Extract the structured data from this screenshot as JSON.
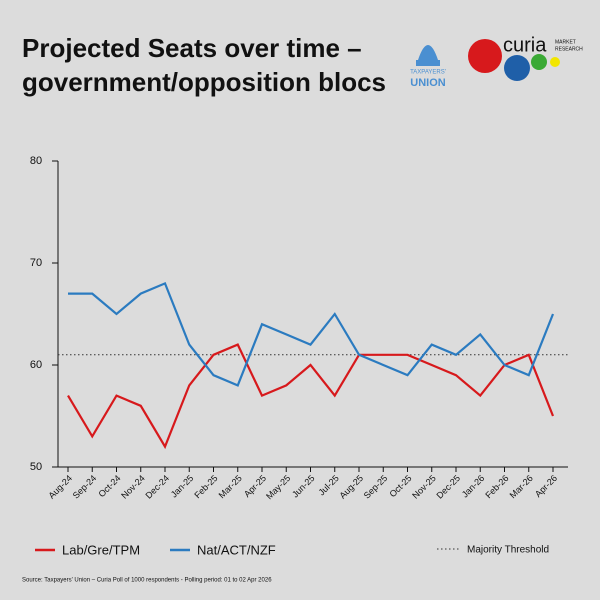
{
  "chart_data": {
    "type": "line",
    "title": [
      "Projected Seats over time –",
      "government/opposition blocs"
    ],
    "logos": {
      "taxpayers": [
        "TAXPAYERS'",
        "UNION"
      ],
      "curia": "curia",
      "curia_sub": [
        "MARKET",
        "RESEARCH"
      ]
    },
    "categories": [
      "Aug-24",
      "Sep-24",
      "Oct-24",
      "Nov-24",
      "Dec-24",
      "Jan-25",
      "Feb-25",
      "Mar-25",
      "Apr-25",
      "May-25",
      "Jun-25",
      "Jul-25",
      "Aug-25",
      "Sep-25",
      "Oct-25",
      "Nov-25",
      "Dec-25",
      "Jan-26",
      "Feb-26",
      "Mar-26",
      "Apr-26"
    ],
    "series": [
      {
        "name": "Lab/Gre/TPM",
        "color": "#d7191c",
        "values": [
          57,
          53,
          57,
          56,
          52,
          58,
          61,
          62,
          57,
          58,
          60,
          57,
          61,
          61,
          61,
          60,
          59,
          57,
          60,
          61,
          55
        ]
      },
      {
        "name": "Nat/ACT/NZF",
        "color": "#2b7bc0",
        "values": [
          67,
          67,
          65,
          67,
          68,
          62,
          59,
          58,
          64,
          63,
          62,
          65,
          61,
          60,
          59,
          62,
          61,
          63,
          60,
          59,
          65
        ]
      }
    ],
    "threshold": {
      "value": 61,
      "label": "Majority Threshold",
      "color": "#333333"
    },
    "ylim": [
      50,
      80
    ],
    "yticks": [
      50,
      60,
      70,
      80
    ],
    "source": "Source: Taxpayers' Union – Curia Poll of 1000 respondents - Polling period: 01 to 02 Apr 2026"
  }
}
